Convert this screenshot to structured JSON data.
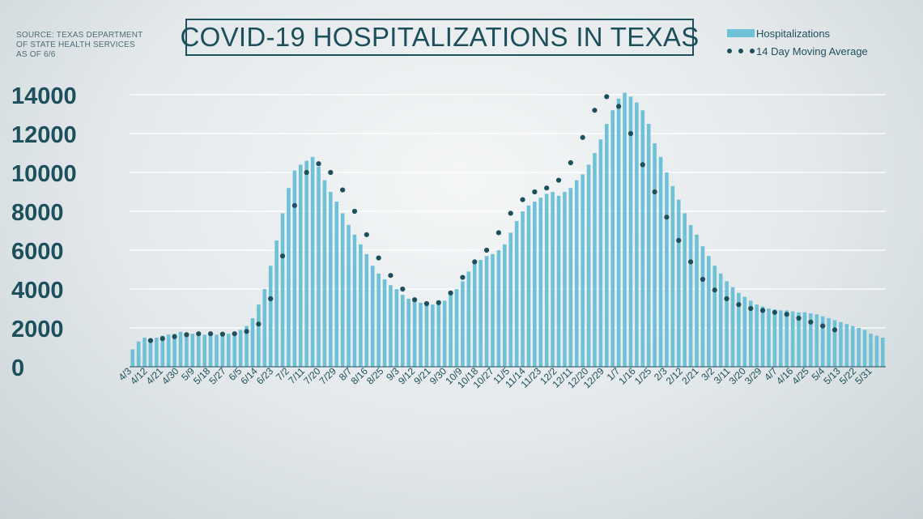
{
  "source": {
    "lines": [
      "SOURCE: TEXAS DEPARTMENT",
      "OF STATE HEALTH SERVICES",
      "AS OF 6/6"
    ]
  },
  "title": "COVID-19 HOSPITALIZATIONS IN TEXAS",
  "legend": {
    "bars_label": "Hospitalizations",
    "line_label": "14 Day Moving Average"
  },
  "colors": {
    "bars": "#6fc1d8",
    "line": "#1d4f5c",
    "text": "#1d4f5c",
    "grid": "#ffffff"
  },
  "chart_data": {
    "type": "bar",
    "ylim": [
      0,
      14000
    ],
    "yticks": [
      0,
      2000,
      4000,
      6000,
      8000,
      10000,
      12000,
      14000
    ],
    "grid": true,
    "legend_position": "top-right",
    "x_labels": [
      "4/3",
      "4/12",
      "4/21",
      "4/30",
      "5/9",
      "5/18",
      "5/27",
      "6/5",
      "6/14",
      "6/23",
      "7/2",
      "7/11",
      "7/20",
      "7/29",
      "8/7",
      "8/16",
      "8/25",
      "9/3",
      "9/12",
      "9/21",
      "9/30",
      "10/9",
      "10/18",
      "10/27",
      "11/5",
      "11/14",
      "11/23",
      "12/2",
      "12/11",
      "12/20",
      "12/29",
      "1/7",
      "1/16",
      "1/25",
      "2/3",
      "2/12",
      "2/21",
      "3/2",
      "3/11",
      "3/20",
      "3/29",
      "4/7",
      "4/16",
      "4/25",
      "5/4",
      "5/13",
      "5/22",
      "5/31"
    ],
    "series": [
      {
        "name": "Hospitalizations",
        "type": "bar",
        "sampled_every_days": 3,
        "start": "4/3",
        "values": [
          900,
          1300,
          1500,
          1400,
          1500,
          1600,
          1650,
          1700,
          1800,
          1750,
          1700,
          1700,
          1650,
          1600,
          1650,
          1700,
          1700,
          1800,
          1900,
          2100,
          2500,
          3200,
          4000,
          5200,
          6500,
          7900,
          9200,
          10100,
          10400,
          10600,
          10800,
          10300,
          9600,
          9000,
          8500,
          7900,
          7300,
          6800,
          6300,
          5800,
          5200,
          4800,
          4500,
          4200,
          4000,
          3700,
          3500,
          3400,
          3300,
          3200,
          3200,
          3250,
          3400,
          3700,
          4000,
          4400,
          4900,
          5300,
          5500,
          5700,
          5800,
          6000,
          6300,
          6900,
          7500,
          8000,
          8300,
          8500,
          8700,
          8900,
          9000,
          8800,
          9000,
          9200,
          9600,
          9900,
          10400,
          11000,
          11700,
          12500,
          13200,
          13800,
          14100,
          13900,
          13600,
          13200,
          12500,
          11500,
          10800,
          10000,
          9300,
          8600,
          7900,
          7300,
          6800,
          6200,
          5700,
          5200,
          4800,
          4400,
          4100,
          3800,
          3600,
          3400,
          3200,
          3100,
          3000,
          2950,
          2900,
          2900,
          2850,
          2800,
          2800,
          2750,
          2700,
          2600,
          2500,
          2400,
          2300,
          2200,
          2100,
          2000,
          1900,
          1700,
          1600,
          1500
        ]
      },
      {
        "name": "14 Day Moving Average",
        "type": "line",
        "style": "dotted",
        "sampled_every_days": 3,
        "start": "4/12",
        "values": [
          1350,
          1400,
          1450,
          1500,
          1550,
          1600,
          1650,
          1700,
          1700,
          1700,
          1700,
          1690,
          1680,
          1680,
          1700,
          1750,
          1820,
          1950,
          2200,
          2700,
          3500,
          4500,
          5700,
          7000,
          8300,
          9300,
          10000,
          10350,
          10450,
          10300,
          10000,
          9600,
          9100,
          8600,
          8000,
          7400,
          6800,
          6200,
          5600,
          5100,
          4700,
          4300,
          4000,
          3700,
          3450,
          3300,
          3250,
          3250,
          3300,
          3500,
          3800,
          4200,
          4600,
          5000,
          5400,
          5700,
          6000,
          6400,
          6900,
          7400,
          7900,
          8300,
          8600,
          8800,
          9000,
          9100,
          9200,
          9400,
          9600,
          10000,
          10500,
          11100,
          11800,
          12500,
          13200,
          13700,
          13900,
          13800,
          13400,
          12800,
          12000,
          11200,
          10400,
          9700,
          9000,
          8300,
          7700,
          7100,
          6500,
          5900,
          5400,
          4900,
          4500,
          4200,
          3950,
          3700,
          3500,
          3350,
          3200,
          3100,
          3000,
          2950,
          2900,
          2850,
          2800,
          2750,
          2700,
          2600,
          2500,
          2400,
          2300,
          2200,
          2100,
          2000,
          1900,
          1800
        ]
      }
    ]
  }
}
